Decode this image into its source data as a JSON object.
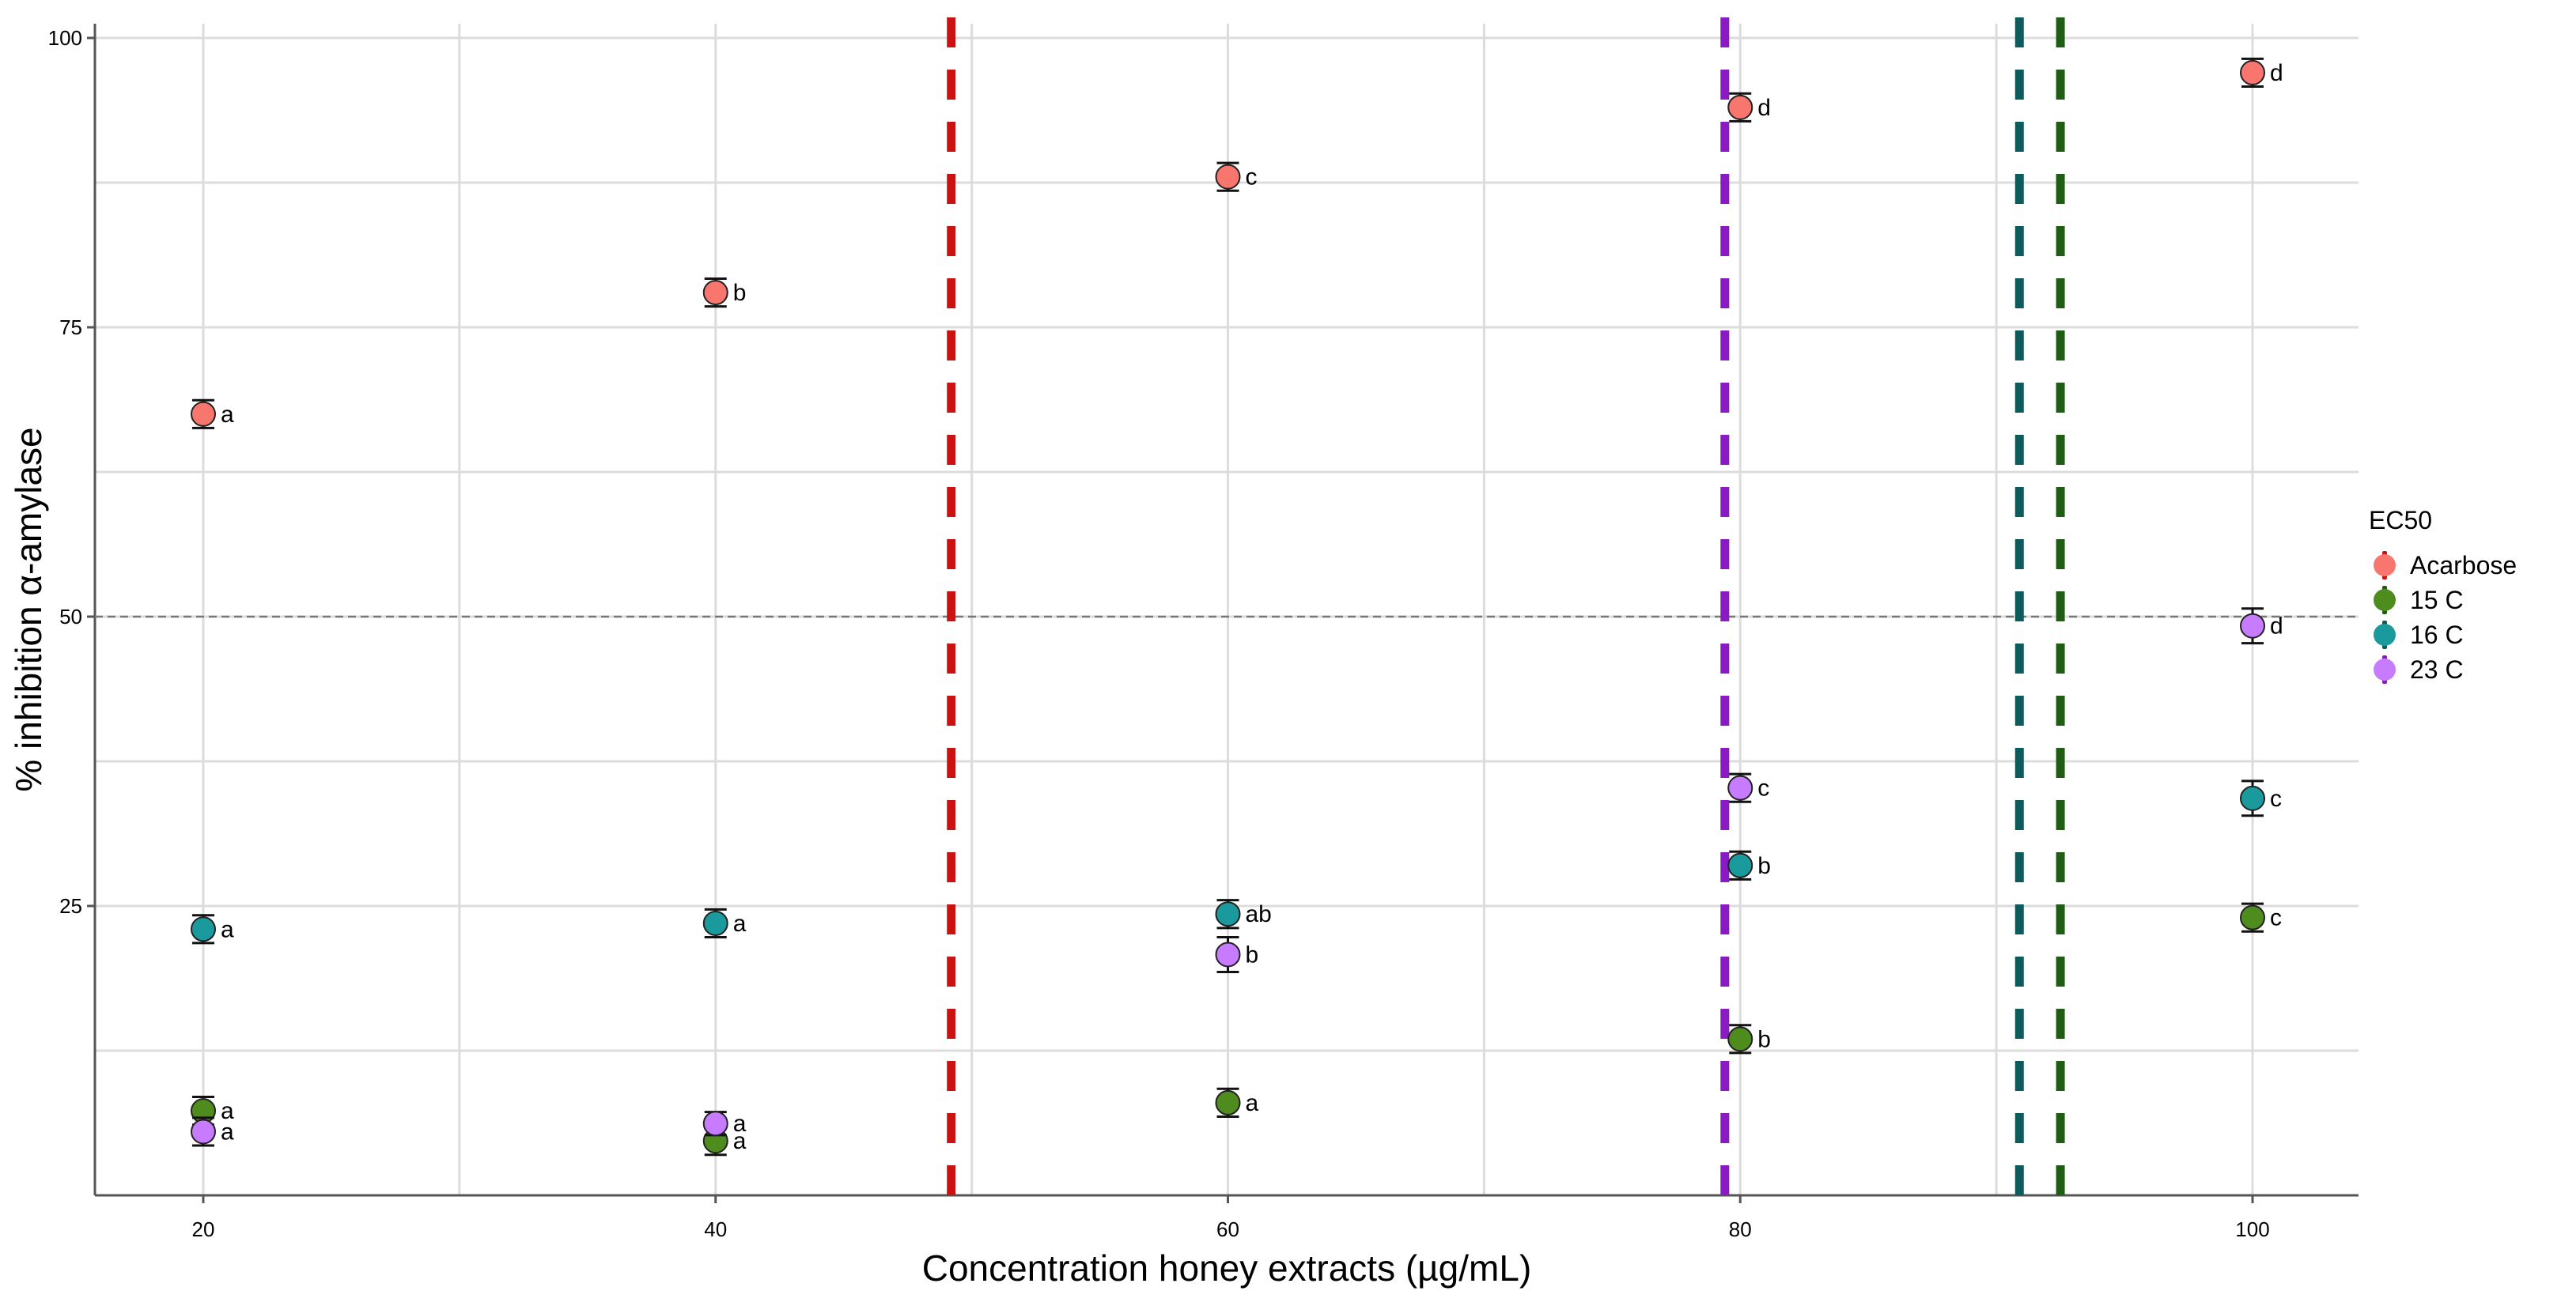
{
  "chart_data": {
    "type": "scatter",
    "title": "",
    "xlabel": "Concentration  honey extracts (µg/mL)",
    "ylabel": "% inhibition α-amylase",
    "xlim": [
      15,
      105
    ],
    "ylim": [
      0,
      100
    ],
    "x_ticks": [
      20,
      40,
      60,
      80,
      100
    ],
    "y_ticks": [
      25,
      50,
      75,
      100
    ],
    "grid": true,
    "reference_line_y": 50,
    "legend_title": "EC50",
    "legend_position": "right",
    "series": [
      {
        "name": "Acarbose",
        "color": "#f8766d",
        "ec50": 49.2,
        "points": [
          {
            "x": 20,
            "y": 67.5,
            "err": 1.2,
            "label": "a"
          },
          {
            "x": 40,
            "y": 78.0,
            "err": 1.2,
            "label": "b"
          },
          {
            "x": 60,
            "y": 88.0,
            "err": 1.2,
            "label": "c"
          },
          {
            "x": 80,
            "y": 94.0,
            "err": 1.2,
            "label": "d"
          },
          {
            "x": 100,
            "y": 97.0,
            "err": 1.2,
            "label": "d"
          }
        ]
      },
      {
        "name": "15 C",
        "color": "#4e8c1e",
        "ec50": 92.5,
        "points": [
          {
            "x": 20,
            "y": 7.3,
            "err": 1.2,
            "label": "a"
          },
          {
            "x": 40,
            "y": 4.7,
            "err": 1.2,
            "label": "a"
          },
          {
            "x": 60,
            "y": 8.0,
            "err": 1.2,
            "label": "a"
          },
          {
            "x": 80,
            "y": 13.5,
            "err": 1.2,
            "label": "b"
          },
          {
            "x": 100,
            "y": 24.0,
            "err": 1.2,
            "label": "c"
          }
        ]
      },
      {
        "name": "16 C",
        "color": "#1a9a9c",
        "ec50": 90.9,
        "points": [
          {
            "x": 20,
            "y": 23.0,
            "err": 1.2,
            "label": "a"
          },
          {
            "x": 40,
            "y": 23.5,
            "err": 1.2,
            "label": "a"
          },
          {
            "x": 60,
            "y": 24.3,
            "err": 1.2,
            "label": "ab"
          },
          {
            "x": 80,
            "y": 28.5,
            "err": 1.2,
            "label": "b"
          },
          {
            "x": 100,
            "y": 34.3,
            "err": 1.5,
            "label": "c"
          }
        ]
      },
      {
        "name": "23 C",
        "color": "#c77cff",
        "ec50": 79.4,
        "points": [
          {
            "x": 20,
            "y": 5.5,
            "err": 1.2,
            "label": "a"
          },
          {
            "x": 40,
            "y": 6.2,
            "err": 1.0,
            "label": "a"
          },
          {
            "x": 60,
            "y": 20.8,
            "err": 1.5,
            "label": "b"
          },
          {
            "x": 80,
            "y": 35.2,
            "err": 1.2,
            "label": "c"
          },
          {
            "x": 100,
            "y": 49.2,
            "err": 1.5,
            "label": "d"
          }
        ]
      }
    ],
    "ec50_lines": [
      {
        "series": "Acarbose",
        "x": 49.2,
        "color": "#cc1111"
      },
      {
        "series": "23 C",
        "x": 79.4,
        "color": "#8a1ac4"
      },
      {
        "series": "16 C",
        "x": 90.9,
        "color": "#0f5a5c"
      },
      {
        "series": "15 C",
        "x": 92.5,
        "color": "#1f5c14"
      }
    ]
  }
}
